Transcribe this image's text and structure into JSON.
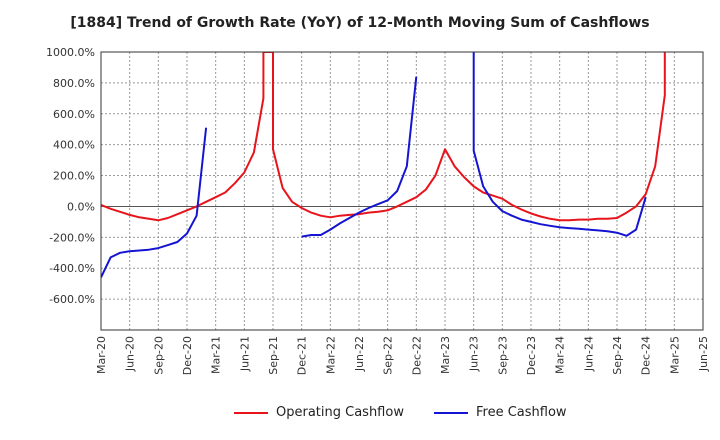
{
  "chart_data": {
    "type": "line",
    "title": "[1884]  Trend of Growth Rate (YoY) of 12-Month Moving Sum of Cashflows",
    "xlabel": "",
    "ylabel": "",
    "x_tick_labels": [
      "Mar-20",
      "Jun-20",
      "Sep-20",
      "Dec-20",
      "Mar-21",
      "Jun-21",
      "Sep-21",
      "Dec-21",
      "Mar-22",
      "Jun-22",
      "Sep-22",
      "Dec-22",
      "Mar-23",
      "Jun-23",
      "Sep-23",
      "Dec-23",
      "Mar-24",
      "Jun-24",
      "Sep-24",
      "Dec-24",
      "Mar-25",
      "Jun-25"
    ],
    "y_ticks": [
      -600,
      -400,
      -200,
      0,
      200,
      400,
      600,
      800,
      1000
    ],
    "y_tick_labels": [
      "-600.0%",
      "-400.0%",
      "-200.0%",
      "0.0%",
      "200.0%",
      "400.0%",
      "600.0%",
      "800.0%",
      "1000.0%"
    ],
    "ylim": [
      -800,
      1000
    ],
    "grid": true,
    "legend_position": "bottom",
    "series": [
      {
        "name": "Operating Cashflow",
        "color": "#e8141b",
        "points": [
          [
            "Mar-20",
            10
          ],
          [
            "Apr-20",
            -15
          ],
          [
            "May-20",
            -35
          ],
          [
            "Jun-20",
            -55
          ],
          [
            "Jul-20",
            -70
          ],
          [
            "Aug-20",
            -80
          ],
          [
            "Sep-20",
            -90
          ],
          [
            "Oct-20",
            -75
          ],
          [
            "Nov-20",
            -50
          ],
          [
            "Dec-20",
            -25
          ],
          [
            "Jan-21",
            0
          ],
          [
            "Feb-21",
            30
          ],
          [
            "Mar-21",
            60
          ],
          [
            "Apr-21",
            90
          ],
          [
            "May-21",
            150
          ],
          [
            "Jun-21",
            220
          ],
          [
            "Jul-21",
            350
          ],
          [
            "Aug-21",
            700
          ],
          [
            "Aug-21",
            1000
          ],
          [
            "Sep-21",
            1000
          ],
          [
            "Sep-21",
            370
          ],
          [
            "Oct-21",
            120
          ],
          [
            "Nov-21",
            30
          ],
          [
            "Dec-21",
            -10
          ],
          [
            "Jan-22",
            -40
          ],
          [
            "Feb-22",
            -60
          ],
          [
            "Mar-22",
            -70
          ],
          [
            "Apr-22",
            -60
          ],
          [
            "May-22",
            -55
          ],
          [
            "Jun-22",
            -50
          ],
          [
            "Jul-22",
            -40
          ],
          [
            "Aug-22",
            -35
          ],
          [
            "Sep-22",
            -25
          ],
          [
            "Oct-22",
            0
          ],
          [
            "Nov-22",
            30
          ],
          [
            "Dec-22",
            60
          ],
          [
            "Jan-23",
            110
          ],
          [
            "Feb-23",
            200
          ],
          [
            "Mar-23",
            370
          ],
          [
            "Apr-23",
            260
          ],
          [
            "May-23",
            190
          ],
          [
            "Jun-23",
            130
          ],
          [
            "Jul-23",
            90
          ],
          [
            "Aug-23",
            70
          ],
          [
            "Sep-23",
            50
          ],
          [
            "Oct-23",
            10
          ],
          [
            "Nov-23",
            -20
          ],
          [
            "Dec-23",
            -45
          ],
          [
            "Jan-24",
            -65
          ],
          [
            "Feb-24",
            -80
          ],
          [
            "Mar-24",
            -90
          ],
          [
            "Apr-24",
            -90
          ],
          [
            "May-24",
            -85
          ],
          [
            "Jun-24",
            -85
          ],
          [
            "Jul-24",
            -80
          ],
          [
            "Aug-24",
            -80
          ],
          [
            "Sep-24",
            -75
          ],
          [
            "Oct-24",
            -40
          ],
          [
            "Nov-24",
            0
          ],
          [
            "Dec-24",
            80
          ],
          [
            "Jan-25",
            260
          ],
          [
            "Feb-25",
            720
          ],
          [
            "Feb-25",
            1000
          ]
        ]
      },
      {
        "name": "Free Cashflow",
        "color": "#1414d2",
        "segments": [
          [
            [
              "Mar-20",
              -460
            ],
            [
              "Apr-20",
              -330
            ],
            [
              "May-20",
              -300
            ],
            [
              "Jun-20",
              -290
            ],
            [
              "Jul-20",
              -285
            ],
            [
              "Aug-20",
              -280
            ],
            [
              "Sep-20",
              -270
            ],
            [
              "Oct-20",
              -250
            ],
            [
              "Nov-20",
              -230
            ],
            [
              "Dec-20",
              -175
            ],
            [
              "Jan-21",
              -60
            ],
            [
              "Feb-21",
              510
            ]
          ],
          [
            [
              "Dec-21",
              -195
            ],
            [
              "Jan-22",
              -185
            ],
            [
              "Feb-22",
              -185
            ],
            [
              "Mar-22",
              -150
            ],
            [
              "Apr-22",
              -110
            ],
            [
              "May-22",
              -75
            ],
            [
              "Jun-22",
              -40
            ],
            [
              "Jul-22",
              -10
            ],
            [
              "Aug-22",
              15
            ],
            [
              "Sep-22",
              40
            ],
            [
              "Oct-22",
              100
            ],
            [
              "Nov-22",
              260
            ],
            [
              "Dec-22",
              840
            ]
          ],
          [
            [
              "Jun-23",
              1000
            ],
            [
              "Jun-23",
              360
            ],
            [
              "Jul-23",
              130
            ],
            [
              "Aug-23",
              30
            ],
            [
              "Sep-23",
              -30
            ],
            [
              "Oct-23",
              -60
            ],
            [
              "Nov-23",
              -85
            ],
            [
              "Dec-23",
              -100
            ],
            [
              "Jan-24",
              -115
            ],
            [
              "Feb-24",
              -125
            ],
            [
              "Mar-24",
              -135
            ],
            [
              "Apr-24",
              -140
            ],
            [
              "May-24",
              -145
            ],
            [
              "Jun-24",
              -150
            ],
            [
              "Jul-24",
              -155
            ],
            [
              "Aug-24",
              -160
            ],
            [
              "Sep-24",
              -170
            ],
            [
              "Oct-24",
              -190
            ],
            [
              "Nov-24",
              -150
            ],
            [
              "Dec-24",
              60
            ]
          ]
        ]
      }
    ]
  }
}
